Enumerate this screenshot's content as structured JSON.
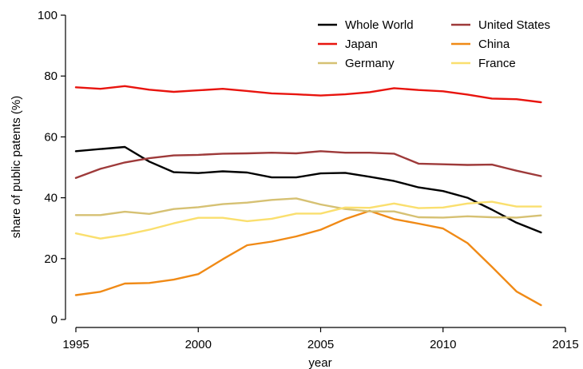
{
  "chart_data": {
    "type": "line",
    "xlabel": "year",
    "ylabel": "share of public patents (%)",
    "xlim": [
      1995,
      2015
    ],
    "ylim": [
      0,
      100
    ],
    "x_ticks": [
      1995,
      2000,
      2005,
      2010,
      2015
    ],
    "y_ticks": [
      0,
      20,
      40,
      60,
      80,
      100
    ],
    "x_tick_labels": [
      "1995",
      "2000",
      "2005",
      "2010",
      "2015"
    ],
    "y_tick_labels": [
      "0",
      "20",
      "40",
      "60",
      "80",
      "100"
    ],
    "grid": false,
    "legend_position": "top-right",
    "x": [
      1995,
      1996,
      1997,
      1998,
      1999,
      2000,
      2001,
      2002,
      2003,
      2004,
      2005,
      2006,
      2007,
      2008,
      2009,
      2010,
      2011,
      2012,
      2013,
      2014
    ],
    "series": [
      {
        "name": "Whole World",
        "color": "#000000",
        "values": [
          55.3,
          56.0,
          56.7,
          51.9,
          48.4,
          48.1,
          48.7,
          48.3,
          46.7,
          46.7,
          48.0,
          48.2,
          46.9,
          45.5,
          43.4,
          42.2,
          40.0,
          36.1,
          31.8,
          28.6
        ]
      },
      {
        "name": "United States",
        "color": "#9e3a3a",
        "values": [
          46.5,
          49.5,
          51.6,
          53.0,
          53.9,
          54.1,
          54.5,
          54.6,
          54.8,
          54.6,
          55.3,
          54.8,
          54.8,
          54.5,
          51.2,
          51.0,
          50.8,
          50.9,
          48.9,
          47.1
        ]
      },
      {
        "name": "Japan",
        "color": "#e8140e",
        "values": [
          76.3,
          75.8,
          76.7,
          75.5,
          74.8,
          75.3,
          75.8,
          75.1,
          74.3,
          74.0,
          73.6,
          74.0,
          74.7,
          76.0,
          75.4,
          75.0,
          73.9,
          72.6,
          72.4,
          71.4
        ]
      },
      {
        "name": "China",
        "color": "#f08a16",
        "values": [
          8.0,
          9.1,
          11.8,
          12.0,
          13.1,
          14.9,
          19.8,
          24.4,
          25.6,
          27.3,
          29.5,
          33.0,
          35.7,
          33.0,
          31.5,
          29.9,
          25.1,
          17.3,
          9.2,
          4.7
        ]
      },
      {
        "name": "Germany",
        "color": "#d6c173",
        "values": [
          34.3,
          34.3,
          35.4,
          34.7,
          36.3,
          36.9,
          37.9,
          38.4,
          39.3,
          39.8,
          37.8,
          36.3,
          35.5,
          35.5,
          33.6,
          33.5,
          33.9,
          33.6,
          33.5,
          34.2
        ]
      },
      {
        "name": "France",
        "color": "#fadf6e",
        "values": [
          28.3,
          26.6,
          27.8,
          29.5,
          31.6,
          33.4,
          33.4,
          32.3,
          33.1,
          34.8,
          34.8,
          36.8,
          36.7,
          38.1,
          36.6,
          36.8,
          38.1,
          38.7,
          37.1,
          37.1
        ]
      }
    ]
  }
}
